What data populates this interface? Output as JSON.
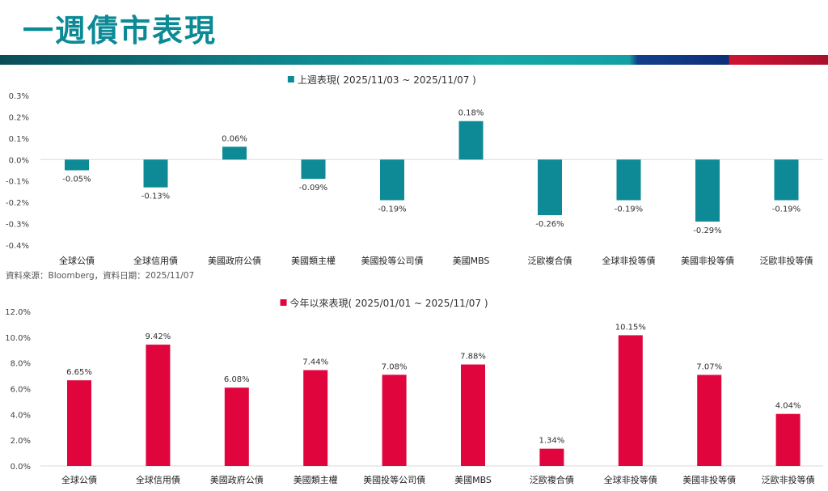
{
  "page": {
    "title": "一週債市表現",
    "source_note": "資料來源：Bloomberg，資料日期：2025/11/07"
  },
  "chart_data": [
    {
      "type": "bar",
      "title": "上週表現( 2025/11/03 ~ 2025/11/07 )",
      "legend": "上週表現( 2025/11/03 ~ 2025/11/07 )",
      "color": "#0e8a96",
      "categories": [
        "全球公債",
        "全球信用債",
        "美國政府公債",
        "美國類主權",
        "美國投等公司債",
        "美國MBS",
        "泛歐複合債",
        "全球非投等債",
        "美國非投等債",
        "泛歐非投等債"
      ],
      "values": [
        -0.05,
        -0.13,
        0.06,
        -0.09,
        -0.19,
        0.18,
        -0.26,
        -0.19,
        -0.29,
        -0.19
      ],
      "value_labels": [
        "-0.05%",
        "-0.13%",
        "0.06%",
        "-0.09%",
        "-0.19%",
        "0.18%",
        "-0.26%",
        "-0.19%",
        "-0.29%",
        "-0.19%"
      ],
      "ylim": [
        -0.4,
        0.3
      ],
      "yticks": [
        0.3,
        0.2,
        0.1,
        0.0,
        -0.1,
        -0.2,
        -0.3,
        -0.4
      ],
      "ytick_labels": [
        "0.3%",
        "0.2%",
        "0.1%",
        "0.0%",
        "-0.1%",
        "-0.2%",
        "-0.3%",
        "-0.4%"
      ],
      "xlabel": "",
      "ylabel": "",
      "grid": false
    },
    {
      "type": "bar",
      "title": "今年以來表現( 2025/01/01 ~ 2025/11/07 )",
      "legend": "今年以來表現( 2025/01/01 ~ 2025/11/07 )",
      "color": "#e0063d",
      "categories": [
        "全球公債",
        "全球信用債",
        "美國政府公債",
        "美國類主權",
        "美國投等公司債",
        "美國MBS",
        "泛歐複合債",
        "全球非投等債",
        "美國非投等債",
        "泛歐非投等債"
      ],
      "values": [
        6.65,
        9.42,
        6.08,
        7.44,
        7.08,
        7.88,
        1.34,
        10.15,
        7.07,
        4.04
      ],
      "value_labels": [
        "6.65%",
        "9.42%",
        "6.08%",
        "7.44%",
        "7.08%",
        "7.88%",
        "1.34%",
        "10.15%",
        "7.07%",
        "4.04%"
      ],
      "ylim": [
        0,
        12
      ],
      "yticks": [
        12,
        10,
        8,
        6,
        4,
        2,
        0
      ],
      "ytick_labels": [
        "12.0%",
        "10.0%",
        "8.0%",
        "6.0%",
        "4.0%",
        "2.0%",
        "0.0%"
      ],
      "xlabel": "",
      "ylabel": "",
      "grid": false
    }
  ]
}
